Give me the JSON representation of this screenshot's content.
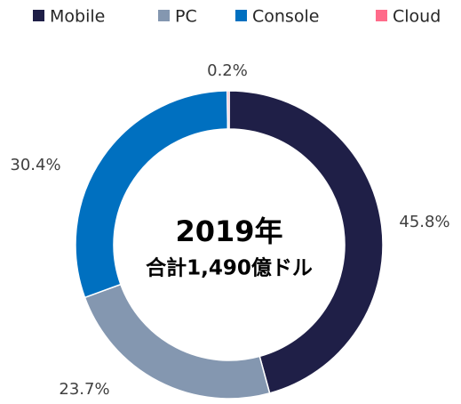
{
  "chart_data": {
    "type": "donut",
    "categories": [
      "Mobile",
      "PC",
      "Console",
      "Cloud"
    ],
    "values": [
      45.8,
      23.7,
      30.4,
      0.2
    ],
    "value_labels": [
      "45.8%",
      "23.7%",
      "30.4%",
      "0.2%"
    ],
    "colors": [
      "#1f1f47",
      "#8497b0",
      "#0070c0",
      "#ff6b8a"
    ],
    "annotations": [
      "2019年",
      "合計1,490億ドル"
    ],
    "legend": "top"
  }
}
